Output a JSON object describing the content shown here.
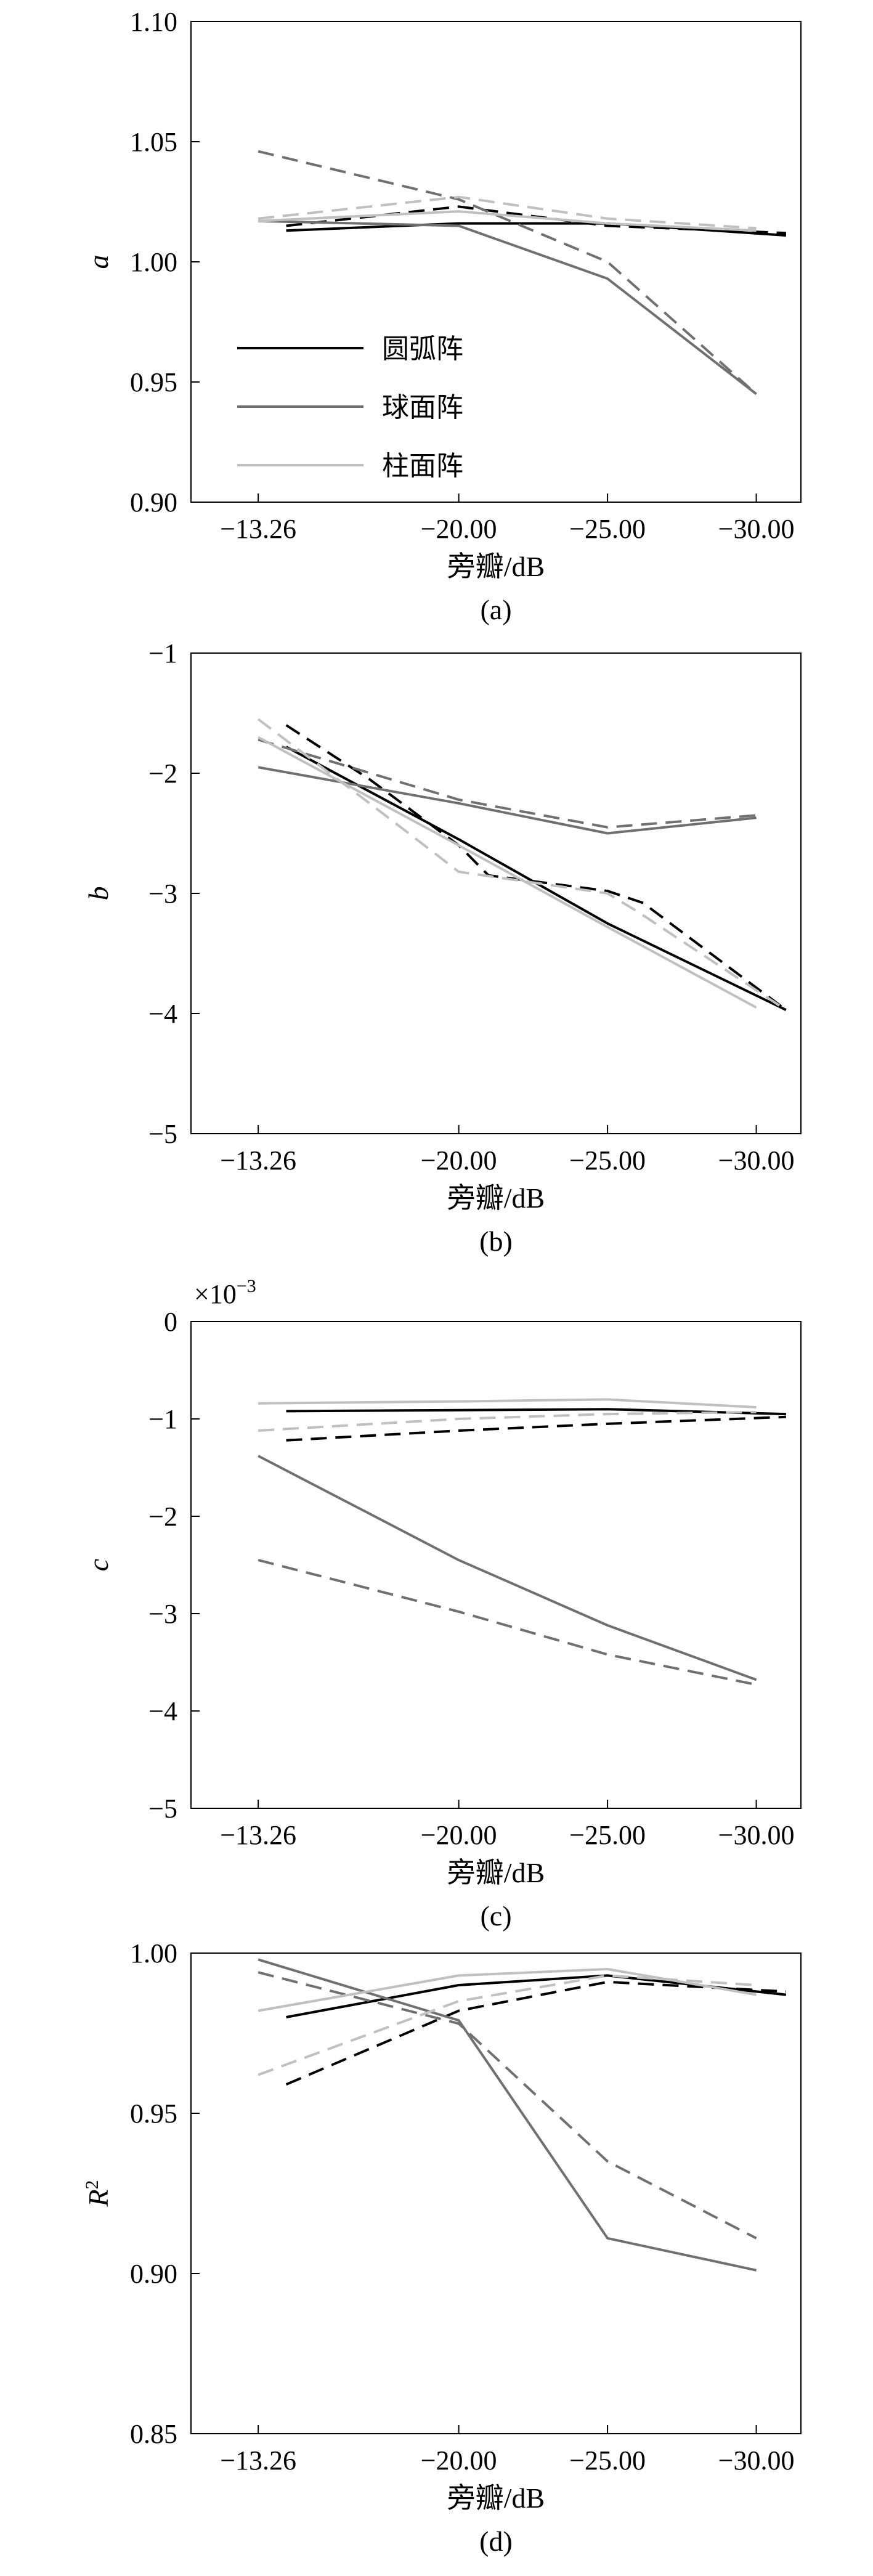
{
  "colors": {
    "circular": "#000000",
    "spherical": "#707070",
    "cylindrical": "#c0c0c0"
  },
  "legend": [
    {
      "label": "圆弧阵",
      "color": "#000000"
    },
    {
      "label": "球面阵",
      "color": "#707070"
    },
    {
      "label": "柱面阵",
      "color": "#c0c0c0"
    }
  ],
  "chart_data": [
    {
      "type": "line",
      "id": "a",
      "panel_label": "(a)",
      "ylabel": "a",
      "xlabel": "旁瓣/dB",
      "xlim": [
        -11,
        -31.5
      ],
      "ylim": [
        0.9,
        1.1
      ],
      "xticks": [
        -13.26,
        -20.0,
        -25.0,
        -30.0
      ],
      "xtick_labels": [
        "−13.26",
        "−20.00",
        "−25.00",
        "−30.00"
      ],
      "yticks": [
        0.9,
        0.95,
        1.0,
        1.05,
        1.1
      ],
      "ytick_labels": [
        "0.90",
        "0.95",
        "1.00",
        "1.05",
        "1.10"
      ],
      "legend_position": "lower-left",
      "series": [
        {
          "name": "圆弧阵",
          "color": "#000000",
          "dash": false,
          "x": [
            -14.2,
            -20.0,
            -25.0,
            -31.0
          ],
          "y": [
            1.013,
            1.016,
            1.016,
            1.011
          ]
        },
        {
          "color": "#000000",
          "dash": true,
          "x": [
            -14.2,
            -20.0,
            -25.0,
            -31.0
          ],
          "y": [
            1.015,
            1.023,
            1.015,
            1.012
          ]
        },
        {
          "name": "球面阵",
          "color": "#707070",
          "dash": false,
          "x": [
            -13.26,
            -20.0,
            -25.0,
            -30.0
          ],
          "y": [
            1.017,
            1.015,
            0.993,
            0.945
          ]
        },
        {
          "color": "#707070",
          "dash": true,
          "x": [
            -13.26,
            -20.0,
            -25.0,
            -30.0
          ],
          "y": [
            1.046,
            1.026,
            1.0,
            0.945
          ]
        },
        {
          "name": "柱面阵",
          "color": "#c0c0c0",
          "dash": false,
          "x": [
            -13.26,
            -20.0,
            -25.0,
            -30.0
          ],
          "y": [
            1.017,
            1.021,
            1.016,
            1.013
          ]
        },
        {
          "color": "#c0c0c0",
          "dash": true,
          "x": [
            -13.26,
            -20.0,
            -25.0,
            -30.0
          ],
          "y": [
            1.018,
            1.027,
            1.018,
            1.014
          ]
        }
      ]
    },
    {
      "type": "line",
      "id": "b",
      "panel_label": "(b)",
      "ylabel": "b",
      "xlabel": "旁瓣/dB",
      "xlim": [
        -11,
        -31.5
      ],
      "ylim": [
        -5,
        -1
      ],
      "xticks": [
        -13.26,
        -20.0,
        -25.0,
        -30.0
      ],
      "xtick_labels": [
        "−13.26",
        "−20.00",
        "−25.00",
        "−30.00"
      ],
      "yticks": [
        -5,
        -4,
        -3,
        -2,
        -1
      ],
      "ytick_labels": [
        "−5",
        "−4",
        "−3",
        "−2",
        "−1"
      ],
      "series": [
        {
          "color": "#000000",
          "dash": false,
          "x": [
            -14.2,
            -20.0,
            -25.0,
            -31.0
          ],
          "y": [
            -1.78,
            -2.55,
            -3.25,
            -3.97
          ]
        },
        {
          "color": "#000000",
          "dash": true,
          "x": [
            -14.2,
            -17.0,
            -20.0,
            -21.0,
            -25.0,
            -26.2,
            -31.0
          ],
          "y": [
            -1.6,
            -2.05,
            -2.6,
            -2.85,
            -2.98,
            -3.08,
            -3.97
          ]
        },
        {
          "color": "#707070",
          "dash": false,
          "x": [
            -13.26,
            -20.0,
            -25.0,
            -30.0
          ],
          "y": [
            -1.95,
            -2.25,
            -2.5,
            -2.37
          ]
        },
        {
          "color": "#707070",
          "dash": true,
          "x": [
            -13.26,
            -20.0,
            -25.0,
            -30.0
          ],
          "y": [
            -1.72,
            -2.22,
            -2.45,
            -2.35
          ]
        },
        {
          "color": "#c0c0c0",
          "dash": false,
          "x": [
            -13.26,
            -20.0,
            -25.0,
            -30.0
          ],
          "y": [
            -1.7,
            -2.6,
            -3.28,
            -3.95
          ]
        },
        {
          "color": "#c0c0c0",
          "dash": true,
          "x": [
            -13.26,
            -17.0,
            -20.0,
            -25.0,
            -26.0,
            -31.0
          ],
          "y": [
            -1.55,
            -2.25,
            -2.82,
            -3.0,
            -3.15,
            -3.97
          ]
        }
      ]
    },
    {
      "type": "line",
      "id": "c",
      "panel_label": "(c)",
      "ylabel": "c",
      "xlabel": "旁瓣/dB",
      "scale_note": "×10",
      "scale_exp": "−3",
      "xlim": [
        -11,
        -31.5
      ],
      "ylim": [
        -5,
        0
      ],
      "xticks": [
        -13.26,
        -20.0,
        -25.0,
        -30.0
      ],
      "xtick_labels": [
        "−13.26",
        "−20.00",
        "−25.00",
        "−30.00"
      ],
      "yticks": [
        -5,
        -4,
        -3,
        -2,
        -1,
        0
      ],
      "ytick_labels": [
        "−5",
        "−4",
        "−3",
        "−2",
        "−1",
        "0"
      ],
      "series": [
        {
          "color": "#000000",
          "dash": false,
          "x": [
            -14.2,
            -20.0,
            -25.0,
            -31.0
          ],
          "y": [
            -0.92,
            -0.91,
            -0.9,
            -0.95
          ]
        },
        {
          "color": "#000000",
          "dash": true,
          "x": [
            -14.2,
            -20.0,
            -25.0,
            -31.0
          ],
          "y": [
            -1.22,
            -1.12,
            -1.05,
            -0.98
          ]
        },
        {
          "color": "#707070",
          "dash": false,
          "x": [
            -13.26,
            -20.0,
            -25.0,
            -30.0
          ],
          "y": [
            -1.38,
            -2.45,
            -3.12,
            -3.68
          ]
        },
        {
          "color": "#707070",
          "dash": true,
          "x": [
            -13.26,
            -20.0,
            -25.0,
            -30.0
          ],
          "y": [
            -2.45,
            -2.98,
            -3.42,
            -3.73
          ]
        },
        {
          "color": "#c0c0c0",
          "dash": false,
          "x": [
            -13.26,
            -20.0,
            -25.0,
            -30.0
          ],
          "y": [
            -0.84,
            -0.82,
            -0.8,
            -0.88
          ]
        },
        {
          "color": "#c0c0c0",
          "dash": true,
          "x": [
            -13.26,
            -20.0,
            -25.0,
            -30.0
          ],
          "y": [
            -1.12,
            -1.0,
            -0.95,
            -0.93
          ]
        }
      ]
    },
    {
      "type": "line",
      "id": "d",
      "panel_label": "(d)",
      "ylabel": "R",
      "ylabel_sup": "2",
      "xlabel": "旁瓣/dB",
      "xlim": [
        -11,
        -31.5
      ],
      "ylim": [
        0.85,
        1.0
      ],
      "xticks": [
        -13.26,
        -20.0,
        -25.0,
        -30.0
      ],
      "xtick_labels": [
        "−13.26",
        "−20.00",
        "−25.00",
        "−30.00"
      ],
      "yticks": [
        0.85,
        0.9,
        0.95,
        1.0
      ],
      "ytick_labels": [
        "0.85",
        "0.90",
        "0.95",
        "1.00"
      ],
      "series": [
        {
          "color": "#000000",
          "dash": false,
          "x": [
            -14.2,
            -20.0,
            -25.0,
            -31.0
          ],
          "y": [
            0.98,
            0.99,
            0.993,
            0.987
          ]
        },
        {
          "color": "#000000",
          "dash": true,
          "x": [
            -14.2,
            -20.0,
            -25.0,
            -31.0
          ],
          "y": [
            0.959,
            0.982,
            0.991,
            0.988
          ]
        },
        {
          "color": "#707070",
          "dash": false,
          "x": [
            -13.26,
            -20.0,
            -25.0,
            -30.0
          ],
          "y": [
            0.998,
            0.979,
            0.911,
            0.901
          ]
        },
        {
          "color": "#707070",
          "dash": true,
          "x": [
            -13.26,
            -20.0,
            -25.0,
            -30.0
          ],
          "y": [
            0.994,
            0.978,
            0.935,
            0.911
          ]
        },
        {
          "color": "#c0c0c0",
          "dash": false,
          "x": [
            -13.26,
            -20.0,
            -25.0,
            -30.0
          ],
          "y": [
            0.982,
            0.993,
            0.995,
            0.987
          ]
        },
        {
          "color": "#c0c0c0",
          "dash": true,
          "x": [
            -13.26,
            -20.0,
            -25.0,
            -30.0
          ],
          "y": [
            0.962,
            0.985,
            0.993,
            0.99
          ]
        }
      ]
    }
  ]
}
